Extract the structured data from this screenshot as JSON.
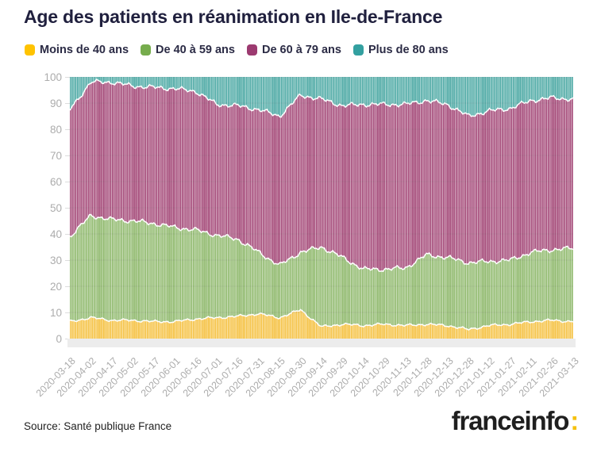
{
  "title": "Age des patients en réanimation en Ile-de-France",
  "source": "Source: Santé publique France",
  "logo": {
    "text": "franceinfo",
    "colon": ":"
  },
  "colors": {
    "title": "#20203e",
    "axis_label": "#acacac",
    "axis_band": "#ececec",
    "logo_text": "#1f1f1f",
    "logo_colon": "#f5c10e",
    "background": "#ffffff"
  },
  "chart_data": {
    "type": "bar",
    "subtype": "stacked-100-percent-daily",
    "title": "Age des patients en réanimation en Ile-de-France",
    "xlabel": "",
    "ylabel": "",
    "ylim": [
      0,
      100
    ],
    "y_ticks": [
      0,
      10,
      20,
      30,
      40,
      50,
      60,
      70,
      80,
      90,
      100
    ],
    "grid": true,
    "legend_position": "top",
    "x_tick_labels": [
      "2020-03-18",
      "2020-04-02",
      "2020-04-17",
      "2020-05-02",
      "2020-05-17",
      "2020-06-01",
      "2020-06-16",
      "2020-07-01",
      "2020-07-16",
      "2020-07-31",
      "2020-08-15",
      "2020-08-30",
      "2020-09-14",
      "2020-09-29",
      "2020-10-14",
      "2020-10-29",
      "2020-11-13",
      "2020-11-28",
      "2020-12-13",
      "2020-12-28",
      "2021-01-12",
      "2021-01-27",
      "2021-02-11",
      "2021-02-26",
      "2021-03-13"
    ],
    "values_note": "Percent of ICU patients per age group, sampled at each x tick (stack sums to 100)",
    "series": [
      {
        "name": "Moins de 40 ans",
        "legend_color": "#ffc300",
        "area_color": "#f5c44b",
        "values": [
          6.5,
          8,
          7,
          7,
          6.5,
          6.5,
          7.5,
          8,
          8.5,
          9.5,
          8,
          11,
          4.5,
          5.5,
          5,
          5.5,
          5,
          5.5,
          5,
          3.5,
          5,
          5.5,
          6.5,
          7,
          6.5
        ]
      },
      {
        "name": "De 40 à 59 ans",
        "legend_color": "#76ac4d",
        "area_color": "#94bc73",
        "values": [
          32.5,
          39,
          38.5,
          38,
          37.5,
          36,
          34,
          31.5,
          29.5,
          23.5,
          20,
          22,
          30.5,
          25.5,
          21.5,
          21,
          22,
          26.5,
          26,
          25.5,
          24.5,
          24.5,
          26.5,
          27,
          28
        ]
      },
      {
        "name": "De 60 à 79 ans",
        "legend_color": "#9c3a70",
        "area_color": "#a8517e",
        "values": [
          48.5,
          51,
          52.5,
          51.5,
          52,
          53,
          53,
          50,
          51,
          54.5,
          57,
          60,
          56.5,
          58,
          63,
          63,
          62.5,
          59,
          58.5,
          56,
          57.5,
          58,
          58,
          58,
          57
        ]
      },
      {
        "name": "Plus de 80 ans",
        "legend_color": "#33a0a0",
        "area_color": "#55ada9",
        "values": [
          12.5,
          2,
          2,
          3.5,
          4,
          4.5,
          5.5,
          10.5,
          11,
          12.5,
          15,
          7,
          8.5,
          11,
          10.5,
          10.5,
          10.5,
          9,
          10.5,
          15,
          13,
          12,
          9,
          8,
          8.5
        ]
      }
    ]
  }
}
